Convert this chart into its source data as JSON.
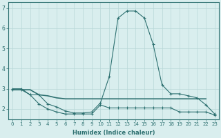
{
  "xlabel": "Humidex (Indice chaleur)",
  "x_values": [
    0,
    1,
    2,
    3,
    4,
    5,
    6,
    7,
    8,
    9,
    10,
    11,
    12,
    13,
    14,
    15,
    16,
    17,
    18,
    19,
    20,
    21,
    22,
    23
  ],
  "line1_y": [
    3.0,
    3.0,
    2.7,
    2.25,
    2.0,
    1.85,
    1.75,
    1.75,
    1.75,
    1.75,
    2.2,
    2.05,
    2.05,
    2.05,
    2.05,
    2.05,
    2.05,
    2.05,
    2.05,
    1.85,
    1.85,
    1.85,
    1.85,
    1.7
  ],
  "line2_y": [
    2.95,
    2.95,
    2.95,
    2.7,
    2.65,
    2.55,
    2.5,
    2.5,
    2.5,
    2.5,
    2.5,
    2.5,
    2.5,
    2.5,
    2.5,
    2.5,
    2.5,
    2.5,
    2.5,
    2.5,
    2.5,
    2.5,
    2.5,
    null
  ],
  "line3_y": [
    2.95,
    2.95,
    2.7,
    2.7,
    2.25,
    2.1,
    1.9,
    1.8,
    1.8,
    1.85,
    2.3,
    3.6,
    6.5,
    6.85,
    6.85,
    6.5,
    5.2,
    3.2,
    2.75,
    2.75,
    2.65,
    2.55,
    2.2,
    1.75
  ],
  "line_color": "#2d7070",
  "bg_color": "#d9eeee",
  "grid_color": "#b8d8d8",
  "ylim": [
    1.5,
    7.3
  ],
  "xlim": [
    -0.5,
    23.5
  ],
  "yticks": [
    2,
    3,
    4,
    5,
    6,
    7
  ],
  "xticks": [
    0,
    1,
    2,
    3,
    4,
    5,
    6,
    7,
    8,
    9,
    10,
    11,
    12,
    13,
    14,
    15,
    16,
    17,
    18,
    19,
    20,
    21,
    22,
    23
  ]
}
